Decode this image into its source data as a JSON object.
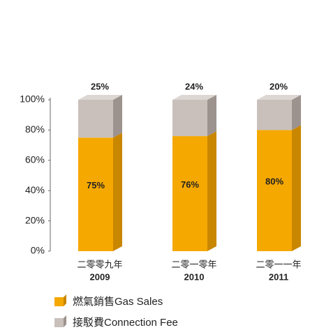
{
  "chart_data": {
    "type": "stacked_bar",
    "categories": [
      "2009",
      "2010",
      "2011"
    ],
    "category_labels_zh": [
      "二零零九年",
      "二零一零年",
      "二零一一年"
    ],
    "series": [
      {
        "name": "燃氣銷售Gas Sales",
        "color": "#f5a800",
        "side_color": "#c98700",
        "values": [
          75,
          76,
          80
        ],
        "value_labels": [
          "75%",
          "76%",
          "80%"
        ]
      },
      {
        "name": "接駁費Connection Fee",
        "color": "#c9c0bc",
        "side_color": "#9c928e",
        "top_color": "#ddd7d4",
        "values": [
          25,
          24,
          20
        ],
        "value_labels": [
          "25%",
          "24%",
          "20%"
        ]
      }
    ],
    "ylim": [
      0,
      100
    ],
    "yticks": [
      {
        "value": 0,
        "label": "0%"
      },
      {
        "value": 20,
        "label": "20%"
      },
      {
        "value": 40,
        "label": "40%"
      },
      {
        "value": 60,
        "label": "60%"
      },
      {
        "value": 80,
        "label": "80%"
      },
      {
        "value": 100,
        "label": "100%"
      }
    ]
  }
}
